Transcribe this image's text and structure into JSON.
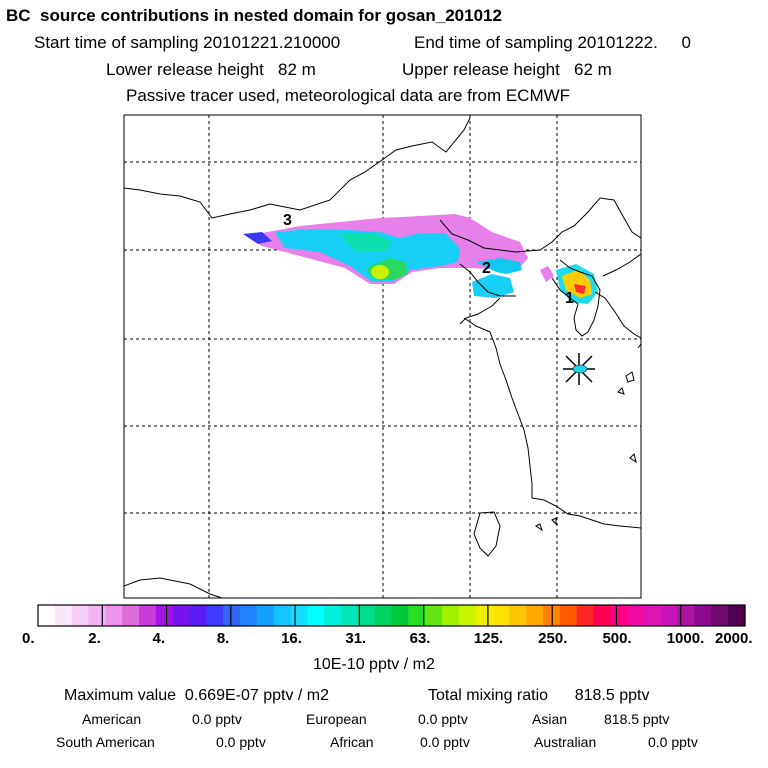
{
  "header": {
    "title": "BC  source contributions in nested domain for gosan_201012",
    "start_label": "Start time of sampling 20101221.210000",
    "end_label": "End time of sampling 20101222.     0",
    "lower_label": "Lower release height   82 m",
    "upper_label": "Upper release height   62 m",
    "passive_label": "Passive tracer used, meteorological data are from ECMWF"
  },
  "chart_data": {
    "type": "heatmap",
    "title": "BC  source contributions in nested domain for gosan_201012",
    "colorbar": {
      "unit": "10E-10 pptv / m2",
      "tick_labels": [
        "0.",
        "2.",
        "4.",
        "8.",
        "16.",
        "31.",
        "63.",
        "125.",
        "250.",
        "500.",
        "1000.",
        "2000."
      ],
      "colors": [
        "#ffffff",
        "#fae6fa",
        "#f5cdf5",
        "#f0b4f0",
        "#eb96eb",
        "#dc6edc",
        "#c83cdc",
        "#a014e6",
        "#7814f0",
        "#5a1ef5",
        "#3c3cff",
        "#3264ff",
        "#1e82ff",
        "#14a0ff",
        "#14c3ff",
        "#14dcff",
        "#00ffff",
        "#00f0dc",
        "#00e6b4",
        "#00dc8c",
        "#00d264",
        "#00c83c",
        "#28dc28",
        "#64e614",
        "#a0f000",
        "#c8f500",
        "#f0f000",
        "#ffe100",
        "#ffc800",
        "#ffaa00",
        "#ff8200",
        "#ff5a00",
        "#ff2828",
        "#ff0050",
        "#ff0082",
        "#f00aa0",
        "#dc14b4",
        "#c814b4",
        "#aa14a0",
        "#8c0a8c",
        "#6e0a6e",
        "#500050"
      ]
    },
    "markers": [
      {
        "label": "1",
        "name": "gosan-receptor"
      },
      {
        "label": "2",
        "name": "source-region-2"
      },
      {
        "label": "3",
        "name": "source-region-3"
      }
    ],
    "receptor_symbol": "star"
  },
  "stats": {
    "max_line": "Maximum value  0.669E-07 pptv / m2",
    "total_line": "Total mixing ratio      818.5 pptv",
    "regions": [
      {
        "name": "American",
        "value": "0.0 pptv"
      },
      {
        "name": "European",
        "value": "0.0 pptv"
      },
      {
        "name": "Asian",
        "value": "818.5 pptv"
      },
      {
        "name": "South American",
        "value": "0.0 pptv"
      },
      {
        "name": "African",
        "value": "0.0 pptv"
      },
      {
        "name": "Australian",
        "value": "0.0 pptv"
      }
    ]
  }
}
